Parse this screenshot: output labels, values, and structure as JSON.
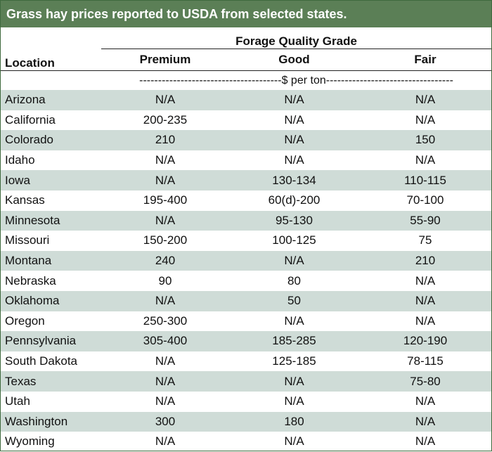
{
  "title": "Grass hay prices reported to USDA from selected states.",
  "group_header": "Forage Quality Grade",
  "columns": {
    "location": "Location",
    "premium": "Premium",
    "good": "Good",
    "fair": "Fair"
  },
  "unit_label": "--------------------------------------$ per ton----------------------------------",
  "rows": [
    {
      "location": "Arizona",
      "premium": "N/A",
      "good": "N/A",
      "fair": "N/A"
    },
    {
      "location": "California",
      "premium": "200-235",
      "good": "N/A",
      "fair": "N/A"
    },
    {
      "location": "Colorado",
      "premium": "210",
      "good": "N/A",
      "fair": "150"
    },
    {
      "location": "Idaho",
      "premium": "N/A",
      "good": "N/A",
      "fair": "N/A"
    },
    {
      "location": "Iowa",
      "premium": "N/A",
      "good": "130-134",
      "fair": "110-115"
    },
    {
      "location": "Kansas",
      "premium": "195-400",
      "good": "60(d)-200",
      "fair": "70-100"
    },
    {
      "location": "Minnesota",
      "premium": "N/A",
      "good": "95-130",
      "fair": "55-90"
    },
    {
      "location": "Missouri",
      "premium": "150-200",
      "good": "100-125",
      "fair": "75"
    },
    {
      "location": "Montana",
      "premium": "240",
      "good": "N/A",
      "fair": "210"
    },
    {
      "location": "Nebraska",
      "premium": "90",
      "good": "80",
      "fair": "N/A"
    },
    {
      "location": "Oklahoma",
      "premium": "N/A",
      "good": "50",
      "fair": "N/A"
    },
    {
      "location": "Oregon",
      "premium": "250-300",
      "good": "N/A",
      "fair": "N/A"
    },
    {
      "location": "Pennsylvania",
      "premium": "305-400",
      "good": "185-285",
      "fair": "120-190"
    },
    {
      "location": "South Dakota",
      "premium": "N/A",
      "good": "125-185",
      "fair": "78-115"
    },
    {
      "location": "Texas",
      "premium": "N/A",
      "good": "N/A",
      "fair": "75-80"
    },
    {
      "location": "Utah",
      "premium": "N/A",
      "good": "N/A",
      "fair": "N/A"
    },
    {
      "location": "Washington",
      "premium": "300",
      "good": "180",
      "fair": "N/A"
    },
    {
      "location": "Wyoming",
      "premium": "N/A",
      "good": "N/A",
      "fair": "N/A"
    }
  ],
  "colors": {
    "title_bg": "#5b7f56",
    "row_shade": "#cfdcd7",
    "border": "#3f6a3e"
  }
}
